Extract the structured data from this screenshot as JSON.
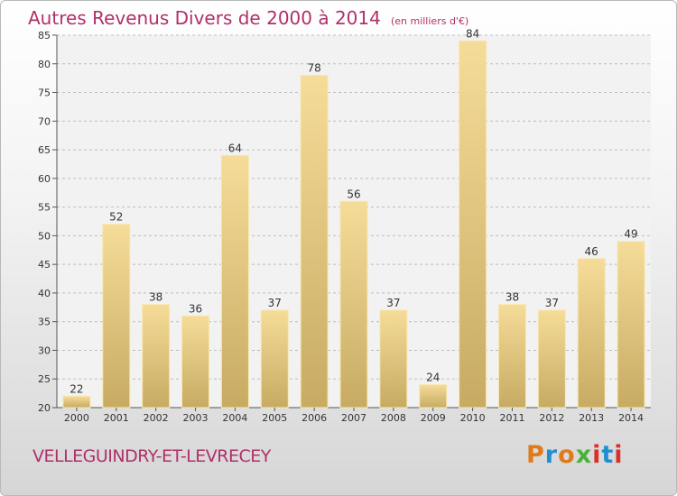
{
  "chart_data": {
    "type": "bar",
    "title": "Autres Revenus Divers de 2000 à 2014",
    "unit": "(en milliers d'€)",
    "categories": [
      "2000",
      "2001",
      "2002",
      "2003",
      "2004",
      "2005",
      "2006",
      "2007",
      "2008",
      "2009",
      "2010",
      "2011",
      "2012",
      "2013",
      "2014"
    ],
    "values": [
      22,
      52,
      38,
      36,
      64,
      37,
      78,
      56,
      37,
      24,
      84,
      38,
      37,
      46,
      49
    ],
    "ylim": [
      20,
      85
    ],
    "yticks": [
      20,
      25,
      30,
      35,
      40,
      45,
      50,
      55,
      60,
      65,
      70,
      75,
      80,
      85
    ],
    "grid": true,
    "legend": "none"
  },
  "footer": {
    "town": "VELLEGUINDRY-ET-LEVRECEY",
    "brand": "Proxiti"
  },
  "colors": {
    "title": "#b0306a",
    "bar_light": "#f5dc98",
    "bar_dark": "#c7ab63",
    "brand_letters": [
      "#e07a1a",
      "#1f8fd0",
      "#e07a1a",
      "#49b23a",
      "#d8322a",
      "#1f8fd0",
      "#d8322a"
    ]
  }
}
